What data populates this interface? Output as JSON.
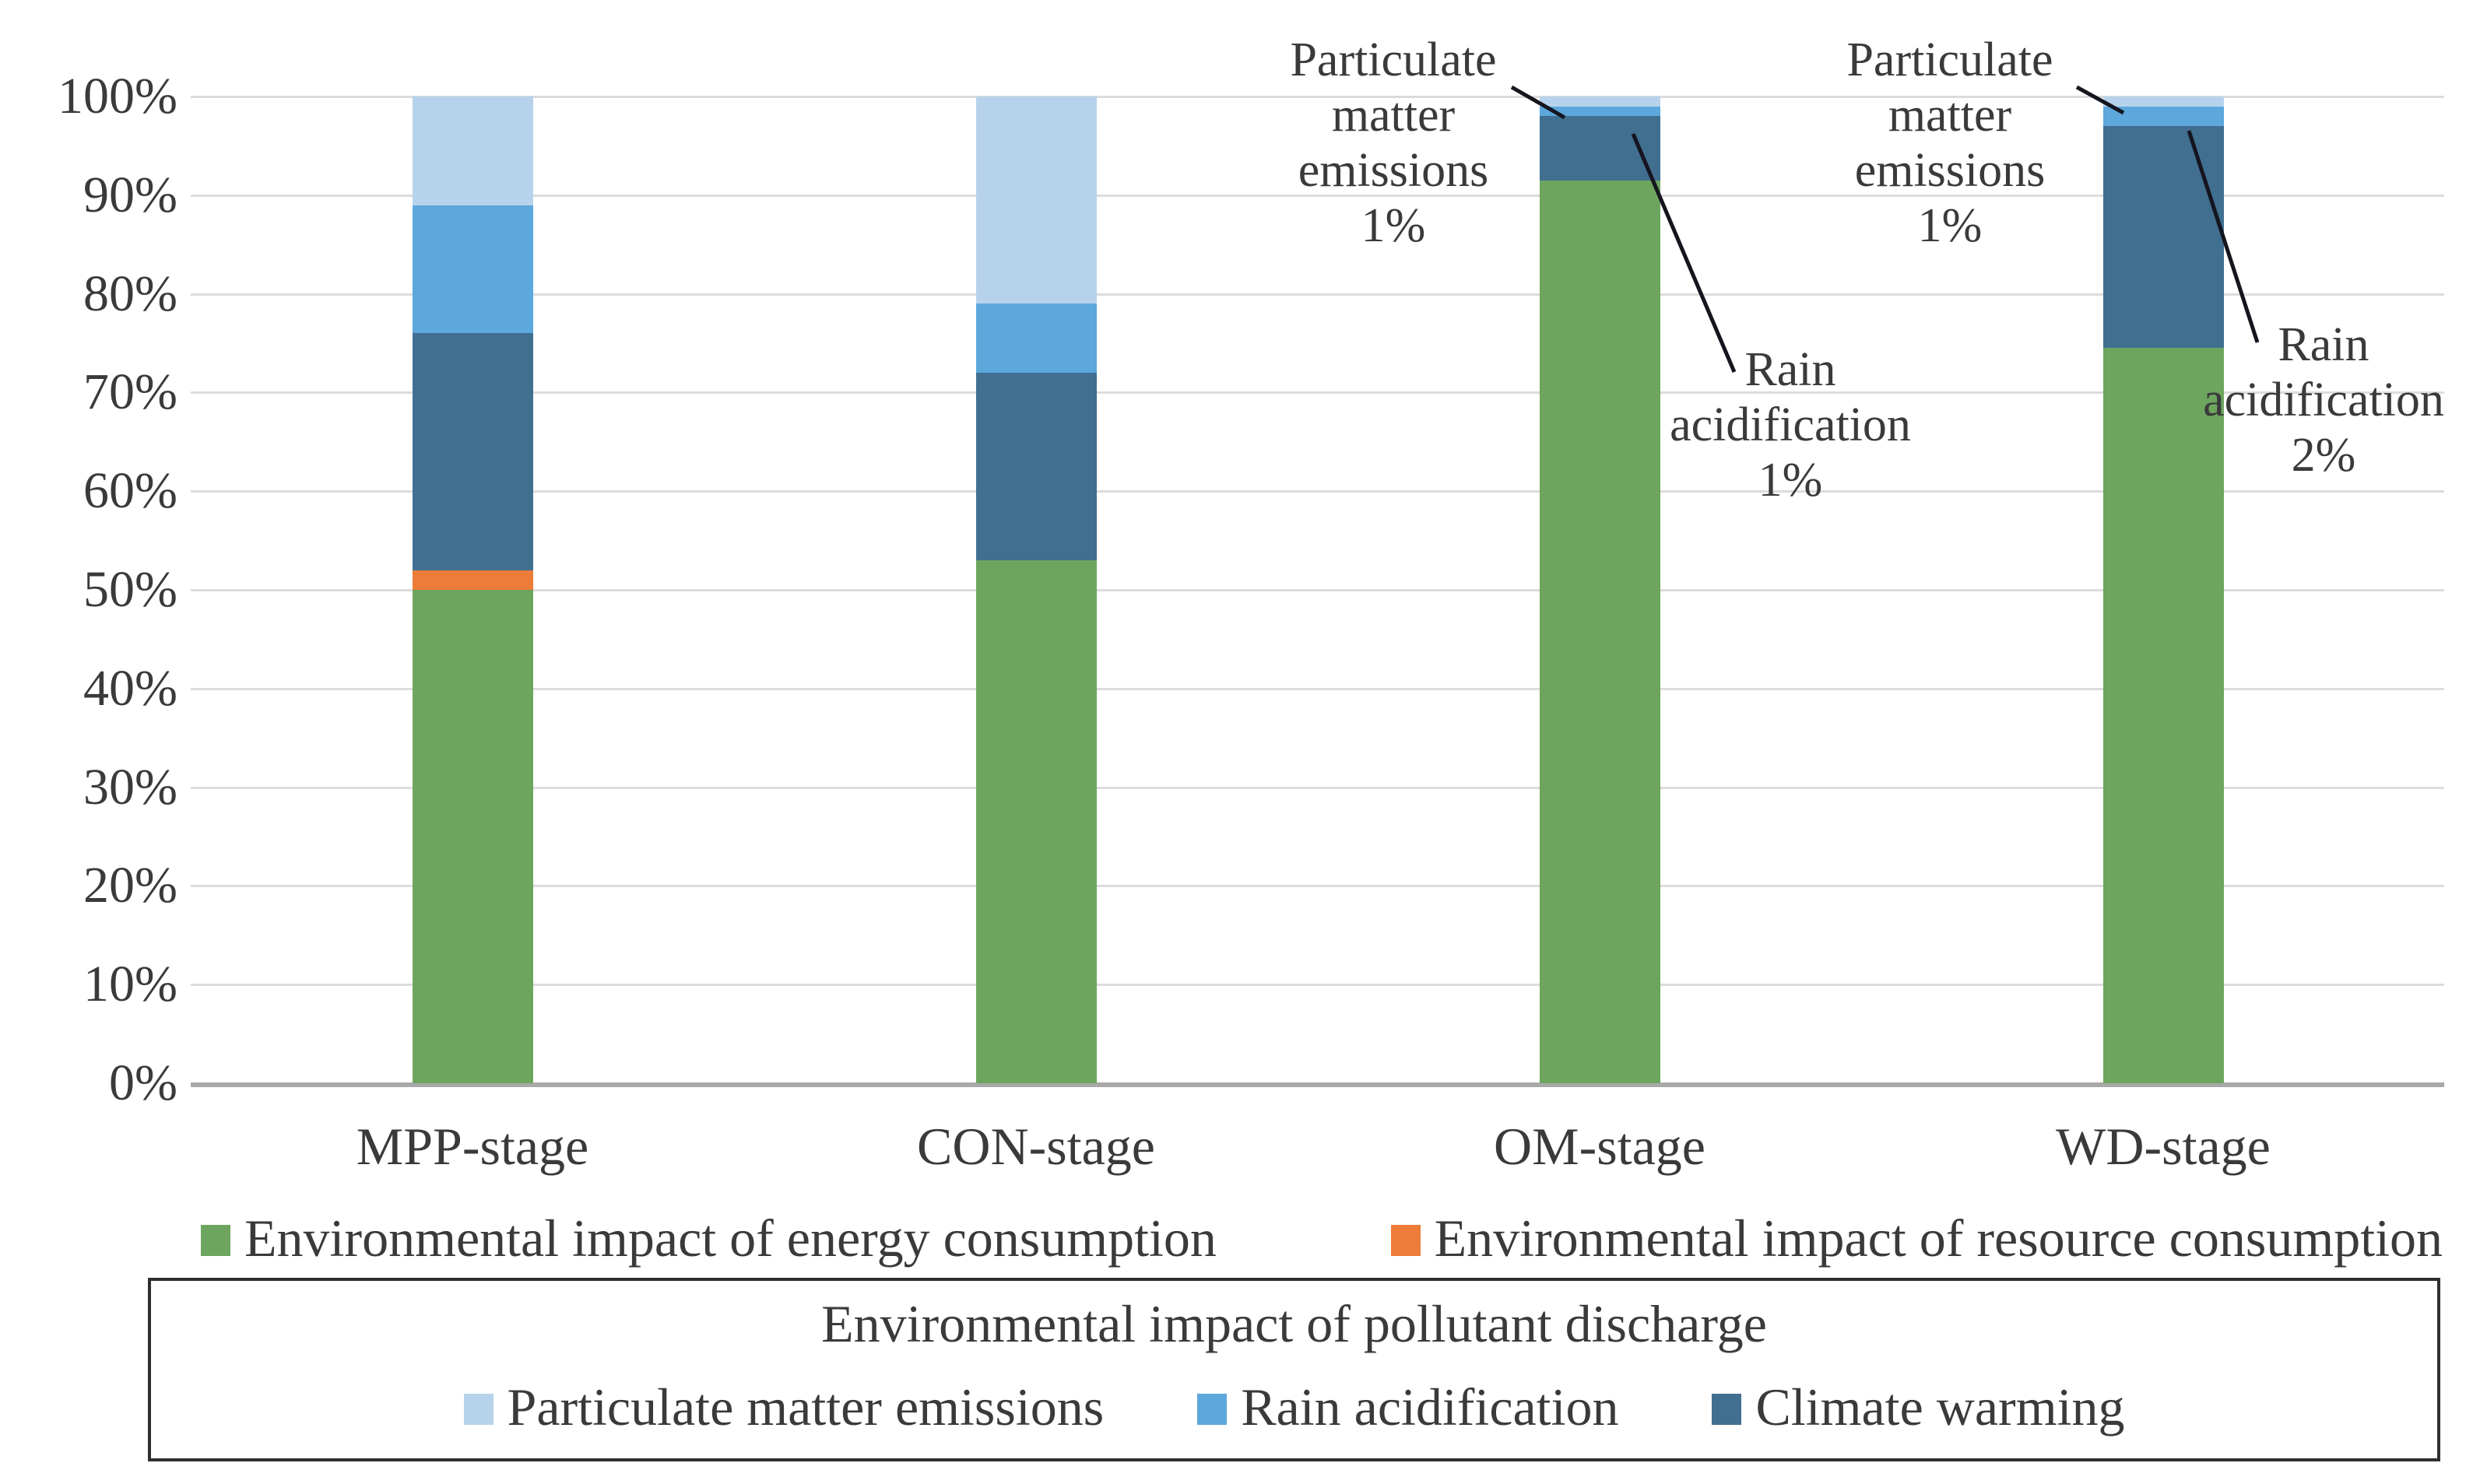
{
  "chart_data": {
    "type": "bar",
    "variant": "100-percent-stacked-column",
    "title": "",
    "xlabel": "",
    "ylabel": "",
    "ylim": [
      0,
      100
    ],
    "grid": "horizontal",
    "legend_position": "bottom",
    "categories": [
      "MPP-stage",
      "CON-stage",
      "OM-stage",
      "WD-stage"
    ],
    "y_ticks": [
      "100%",
      "90%",
      "80%",
      "70%",
      "60%",
      "50%",
      "40%",
      "30%",
      "20%",
      "10%",
      "0%"
    ],
    "series": [
      {
        "name": "Environmental impact of energy consumption",
        "color": "#6da55f",
        "values": [
          50,
          53,
          91.5,
          74.5
        ]
      },
      {
        "name": "Environmental impact of resource consumption",
        "color": "#ec7c37",
        "values": [
          2,
          0,
          0,
          0
        ]
      },
      {
        "name": "Climate warming",
        "color": "#416f90",
        "values": [
          24,
          19,
          6.5,
          22.5
        ]
      },
      {
        "name": "Rain acidification",
        "color": "#5ca7db",
        "values": [
          13,
          7,
          1,
          2
        ]
      },
      {
        "name": "Particulate matter emissions",
        "color": "#b7d3ec",
        "values": [
          11,
          21,
          1,
          1
        ]
      }
    ],
    "legend_box_title": "Environmental impact of pollutant discharge",
    "annotations": [
      {
        "category": "OM-stage",
        "series": "Particulate matter emissions",
        "label": "Particulate\nmatter\nemissions\n1%"
      },
      {
        "category": "OM-stage",
        "series": "Rain acidification",
        "label": "Rain\nacidification\n1%"
      },
      {
        "category": "WD-stage",
        "series": "Particulate matter emissions",
        "label": "Particulate\nmatter\nemissions\n1%"
      },
      {
        "category": "WD-stage",
        "series": "Rain acidification",
        "label": "Rain\nacidification\n2%"
      }
    ]
  }
}
